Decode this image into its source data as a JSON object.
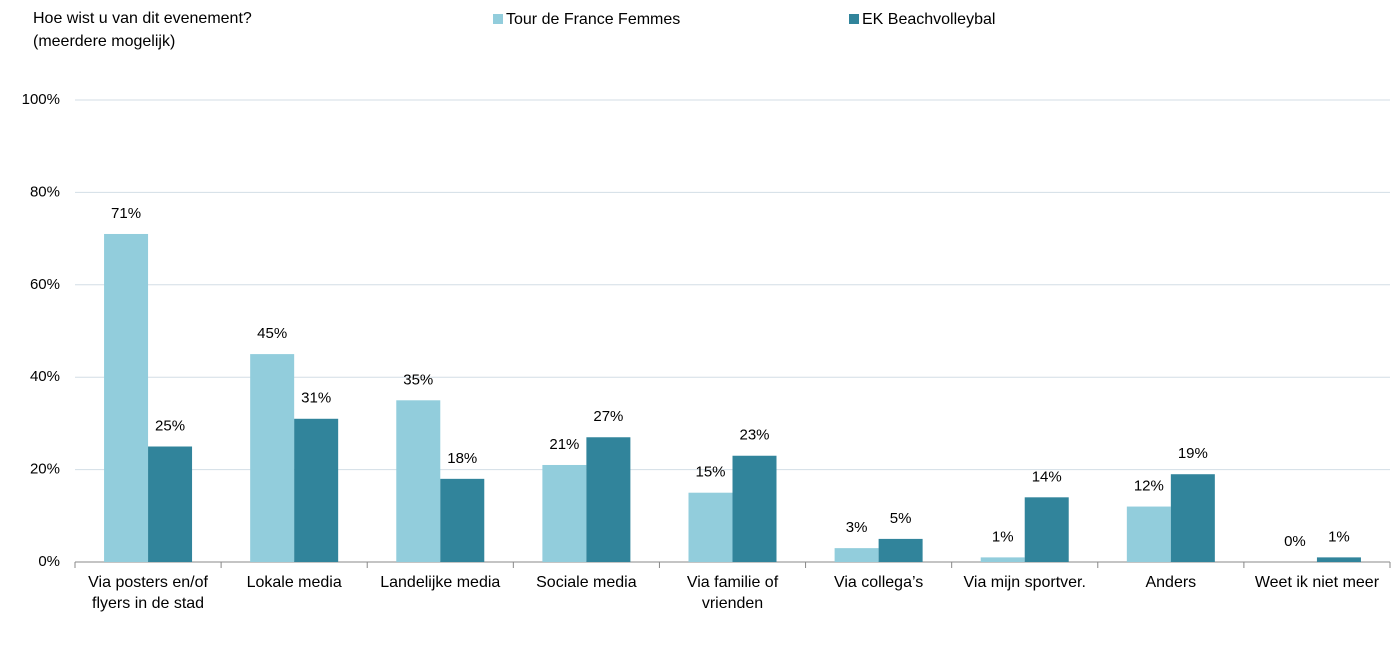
{
  "chart_data": {
    "type": "bar",
    "title": "Hoe wist u van dit evenement?",
    "subtitle": "(meerdere mogelijk)",
    "categories": [
      "Via posters en/of flyers in de stad",
      "Lokale media",
      "Landelijke media",
      "Sociale media",
      "Via familie of vrienden",
      "Via collega’s",
      "Via mijn sportver.",
      "Anders",
      "Weet ik niet meer"
    ],
    "series": [
      {
        "name": "Tour de France Femmes",
        "color": "#92cddc",
        "values": [
          71,
          45,
          35,
          21,
          15,
          3,
          1,
          12,
          0
        ],
        "value_labels": [
          "71%",
          "45%",
          "35%",
          "21%",
          "15%",
          "3%",
          "1%",
          "12%",
          "0%"
        ]
      },
      {
        "name": "EK Beachvolleybal",
        "color": "#31849b",
        "values": [
          25,
          31,
          18,
          27,
          23,
          5,
          14,
          19,
          1
        ],
        "value_labels": [
          "25%",
          "31%",
          "18%",
          "27%",
          "23%",
          "5%",
          "14%",
          "19%",
          "1%"
        ]
      }
    ],
    "ylim": [
      0,
      100
    ],
    "yticks": [
      {
        "value": 0,
        "label": "0%"
      },
      {
        "value": 20,
        "label": "20%"
      },
      {
        "value": 40,
        "label": "40%"
      },
      {
        "value": 60,
        "label": "60%"
      },
      {
        "value": 80,
        "label": "80%"
      },
      {
        "value": 100,
        "label": "100%"
      }
    ],
    "grid": true,
    "legend": "top"
  }
}
